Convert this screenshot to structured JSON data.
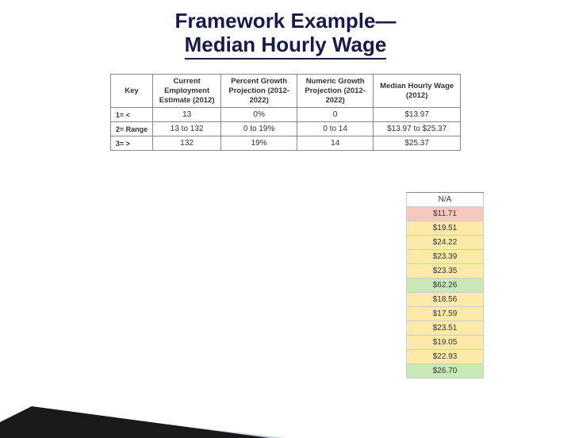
{
  "title_line1": "Framework Example—",
  "title_line2": "Median Hourly Wage",
  "key_table": {
    "headers": [
      "Key",
      "Current Employment Estimate (2012)",
      "Percent Growth Projection (2012-2022)",
      "Numeric Growth Projection (2012-2022)",
      "Median Hourly Wage (2012)"
    ],
    "rows": [
      {
        "label": "1= <",
        "cells": [
          "13",
          "0%",
          "0",
          "$13.97"
        ]
      },
      {
        "label": "2= Range",
        "cells": [
          "13 to 132",
          "0 to 19%",
          "0 to 14",
          "$13.97 to $25.37"
        ]
      },
      {
        "label": "3= >",
        "cells": [
          "132",
          "19%",
          "14",
          "$25.37"
        ]
      }
    ]
  },
  "wage_rows": [
    {
      "text": "N/A",
      "bg": "#ffffff"
    },
    {
      "text": "$11.71",
      "bg": "#f7c7c0"
    },
    {
      "text": "$19.51",
      "bg": "#fde9a8"
    },
    {
      "text": "$24.22",
      "bg": "#fde9a8"
    },
    {
      "text": "$23.39",
      "bg": "#fde9a8"
    },
    {
      "text": "$23.35",
      "bg": "#fde9a8"
    },
    {
      "text": "$62.26",
      "bg": "#c9e8b8"
    },
    {
      "text": "$18.56",
      "bg": "#fde9a8"
    },
    {
      "text": "$17.59",
      "bg": "#fde9a8"
    },
    {
      "text": "$23.51",
      "bg": "#fde9a8"
    },
    {
      "text": "$19.05",
      "bg": "#fde9a8"
    },
    {
      "text": "$22.93",
      "bg": "#fde9a8"
    },
    {
      "text": "$26.70",
      "bg": "#c9e8b8"
    }
  ],
  "colors": {
    "title": "#1a1a4a",
    "decor_blue": "#c7d3e8",
    "decor_black": "#1a1a1a"
  }
}
